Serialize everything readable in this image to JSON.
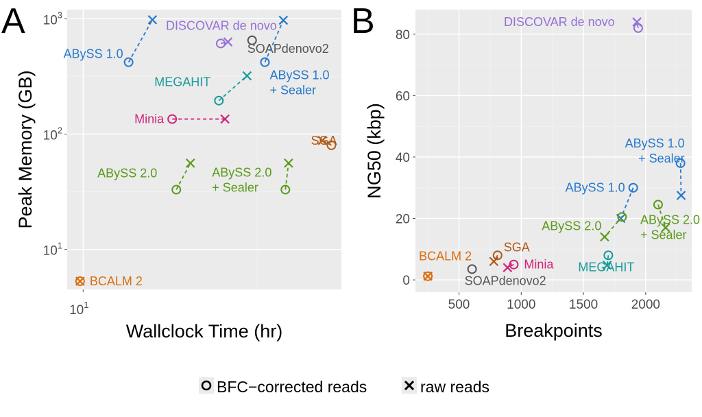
{
  "chart_data": [
    {
      "type": "scatter",
      "panel_label": "A",
      "xlabel": "Wallclock Time (hr)",
      "ylabel": "Peak Memory (GB)",
      "xscale": "log",
      "yscale": "log",
      "xlim": [
        9,
        55
      ],
      "ylim": [
        4.5,
        1200
      ],
      "xticks": [
        {
          "value": 10,
          "base": "10",
          "exp": "1"
        }
      ],
      "yticks": [
        {
          "value": 10,
          "base": "10",
          "exp": "1"
        },
        {
          "value": 100,
          "base": "10",
          "exp": "2"
        },
        {
          "value": 1000,
          "base": "10",
          "exp": "3"
        }
      ],
      "grid": true,
      "series": [
        {
          "name": "ABySS 1.0",
          "color": "#2779cc",
          "bfc": [
            13.5,
            420
          ],
          "raw": [
            15.8,
            980
          ],
          "label": [
            "ABySS 1.0"
          ]
        },
        {
          "name": "DISCOVAR de novo",
          "color": "#9470d6",
          "bfc": [
            24.8,
            610
          ],
          "raw": [
            26.0,
            630
          ],
          "label": [
            "DISCOVAR de novo"
          ]
        },
        {
          "name": "SOAPdenovo2",
          "color": "#555555",
          "bfc": [
            30.5,
            650
          ],
          "raw": null,
          "label": [
            "SOAPdenovo2"
          ]
        },
        {
          "name": "ABySS 1.0 + Sealer",
          "color": "#2779cc",
          "bfc": [
            33.2,
            420
          ],
          "raw": [
            37.5,
            970
          ],
          "label": [
            "ABySS 1.0",
            "+ Sealer"
          ]
        },
        {
          "name": "MEGAHIT",
          "color": "#1a9a9a",
          "bfc": [
            24.5,
            195
          ],
          "raw": [
            29.5,
            320
          ],
          "label": [
            "MEGAHIT"
          ]
        },
        {
          "name": "Minia",
          "color": "#d0247a",
          "bfc": [
            18.0,
            135
          ],
          "raw": [
            25.5,
            135
          ],
          "label": [
            "Minia"
          ]
        },
        {
          "name": "SGA",
          "color": "#b05a18",
          "bfc": [
            51.5,
            80
          ],
          "raw": [
            48.5,
            88
          ],
          "label": [
            "SGA"
          ]
        },
        {
          "name": "ABySS 2.0",
          "color": "#5a9a1a",
          "bfc": [
            18.5,
            33
          ],
          "raw": [
            20.3,
            56
          ],
          "label": [
            "ABySS 2.0"
          ]
        },
        {
          "name": "ABySS 2.0 + Sealer",
          "color": "#5a9a1a",
          "bfc": [
            38.0,
            33
          ],
          "raw": [
            38.8,
            56
          ],
          "label": [
            "ABySS 2.0",
            "+ Sealer"
          ]
        },
        {
          "name": "BCALM 2",
          "color": "#d96d0e",
          "bfc": [
            9.8,
            5.3
          ],
          "raw": [
            9.8,
            5.3
          ],
          "label": [
            "BCALM 2"
          ]
        }
      ]
    },
    {
      "type": "scatter",
      "panel_label": "B",
      "xlabel": "Breakpoints",
      "ylabel": "NG50 (kbp)",
      "xlim": [
        150,
        2370
      ],
      "ylim": [
        -4,
        88
      ],
      "xticks": [
        500,
        1000,
        1500,
        2000
      ],
      "yticks": [
        0,
        20,
        40,
        60,
        80
      ],
      "grid": true,
      "series": [
        {
          "name": "DISCOVAR de novo",
          "color": "#9470d6",
          "bfc": [
            1940,
            82
          ],
          "raw": [
            1930,
            84
          ],
          "label": [
            "DISCOVAR de novo"
          ]
        },
        {
          "name": "ABySS 1.0 + Sealer",
          "color": "#2779cc",
          "bfc": [
            2280,
            38
          ],
          "raw": [
            2285,
            27.5
          ],
          "label": [
            "ABySS 1.0",
            "+ Sealer"
          ]
        },
        {
          "name": "ABySS 1.0",
          "color": "#2779cc",
          "bfc": [
            1900,
            30
          ],
          "raw": [
            1800,
            20
          ],
          "label": [
            "ABySS 1.0"
          ]
        },
        {
          "name": "ABySS 2.0",
          "color": "#5a9a1a",
          "bfc": [
            1810,
            20.5
          ],
          "raw": [
            1670,
            14
          ],
          "label": [
            "ABySS 2.0"
          ]
        },
        {
          "name": "ABySS 2.0 + Sealer",
          "color": "#5a9a1a",
          "bfc": [
            2100,
            24.5
          ],
          "raw": [
            2160,
            17
          ],
          "label": [
            "ABySS 2.0",
            "+ Sealer"
          ]
        },
        {
          "name": "MEGAHIT",
          "color": "#1a9a9a",
          "bfc": [
            1700,
            8
          ],
          "raw": [
            1690,
            4.8
          ],
          "label": [
            "MEGAHIT"
          ]
        },
        {
          "name": "SGA",
          "color": "#b05a18",
          "bfc": [
            810,
            8
          ],
          "raw": [
            780,
            6
          ],
          "label": [
            "SGA"
          ]
        },
        {
          "name": "Minia",
          "color": "#d0247a",
          "bfc": [
            940,
            5
          ],
          "raw": [
            890,
            4
          ],
          "label": [
            "Minia"
          ]
        },
        {
          "name": "SOAPdenovo2",
          "color": "#555555",
          "bfc": [
            605,
            3.5
          ],
          "raw": null,
          "label": [
            "SOAPdenovo2"
          ]
        },
        {
          "name": "BCALM 2",
          "color": "#d96d0e",
          "bfc": [
            250,
            1.2
          ],
          "raw": [
            250,
            1.2
          ],
          "label": [
            "BCALM 2"
          ]
        }
      ]
    }
  ],
  "legend": {
    "position": "bottom",
    "items": [
      {
        "shape": "circle",
        "label": "BFC−corrected reads"
      },
      {
        "shape": "cross",
        "label": "raw reads"
      }
    ]
  }
}
